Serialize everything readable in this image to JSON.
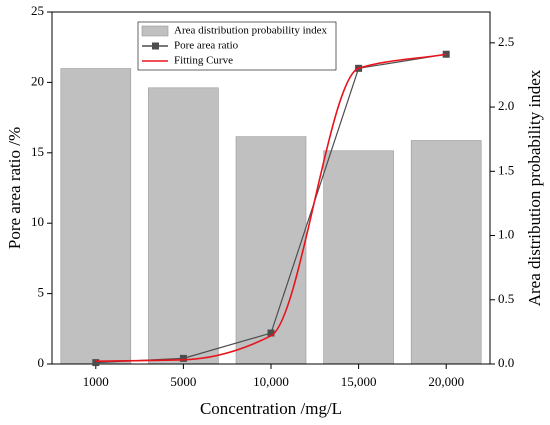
{
  "chart_data": {
    "type": "bar_line",
    "xlabel": "Concentration /mg/L",
    "ylabel": "Pore area ratio /%",
    "y2label": "Area distribution probability index",
    "categories": [
      "1000",
      "5000",
      "10,000",
      "15,000",
      "20,000"
    ],
    "series": [
      {
        "name": "Area distribution probability index",
        "type": "bar",
        "axis": "y2",
        "color": "#c0c0c0",
        "values": [
          2.3,
          2.15,
          1.77,
          1.66,
          1.74
        ]
      },
      {
        "name": "Pore area ratio",
        "type": "line",
        "marker": "square",
        "color": "#4d4d4d",
        "values": [
          0.1,
          0.4,
          2.2,
          21.0,
          22.0
        ]
      },
      {
        "name": "Fitting Curve",
        "type": "smooth",
        "color": "#e8141c",
        "values": [
          0.2,
          0.3,
          2.0,
          21.0,
          22.0
        ]
      }
    ],
    "ylim": [
      0,
      25
    ],
    "yticks": [
      0,
      5,
      10,
      15,
      20,
      25
    ],
    "y2lim": [
      0,
      2.74
    ],
    "y2ticks": [
      {
        "value": 0,
        "label": "0.0"
      },
      0.5,
      {
        "value": 1,
        "label": "1.0"
      },
      1.5,
      {
        "value": 2,
        "label": "2.0"
      },
      2.5
    ],
    "legend": "top-left"
  }
}
